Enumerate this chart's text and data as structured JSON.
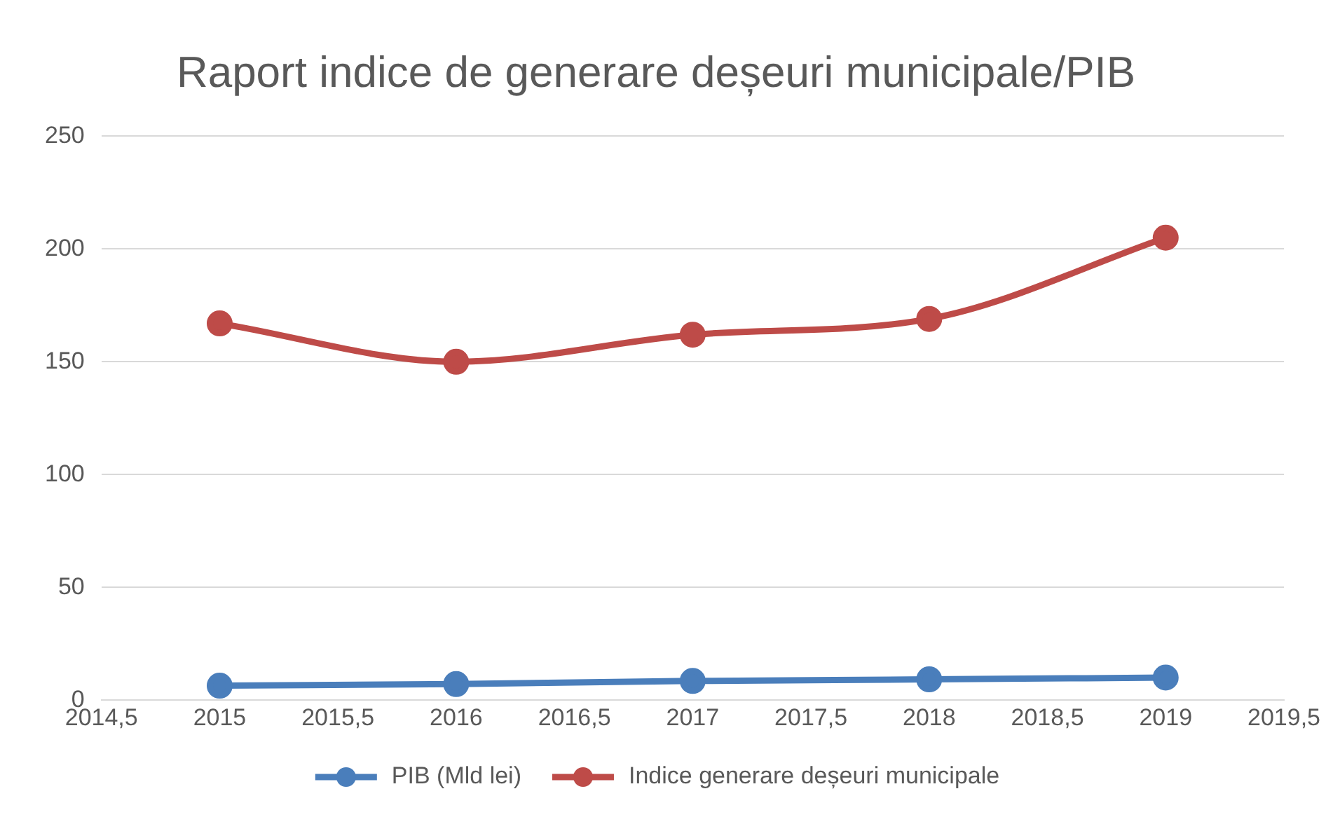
{
  "chart_data": {
    "type": "line",
    "title": "Raport indice de generare deșeuri municipale/PIB",
    "x": [
      2015,
      2016,
      2017,
      2018,
      2019
    ],
    "series": [
      {
        "name": "PIB (Mld lei)",
        "color": "#4a7ebb",
        "values": [
          6.4,
          7.1,
          8.5,
          9.2,
          10
        ]
      },
      {
        "name": "Indice generare deșeuri municipale",
        "color": "#be4b48",
        "values": [
          167,
          150,
          162,
          169,
          205
        ]
      }
    ],
    "xlim": [
      2014.5,
      2019.5
    ],
    "xticks": [
      {
        "value": 2014.5,
        "label": "2014,5"
      },
      2015,
      {
        "value": 2015.5,
        "label": "2015,5"
      },
      2016,
      {
        "value": 2016.5,
        "label": "2016,5"
      },
      2017,
      {
        "value": 2017.5,
        "label": "2017,5"
      },
      2018,
      {
        "value": 2018.5,
        "label": "2018,5"
      },
      2019,
      {
        "value": 2019.5,
        "label": "2019,5"
      }
    ],
    "ylim": [
      0,
      250
    ],
    "yticks": [
      0,
      50,
      100,
      150,
      200,
      250
    ],
    "grid": "y",
    "legend": "bottom",
    "marker": "circle",
    "line_style": "solid"
  }
}
